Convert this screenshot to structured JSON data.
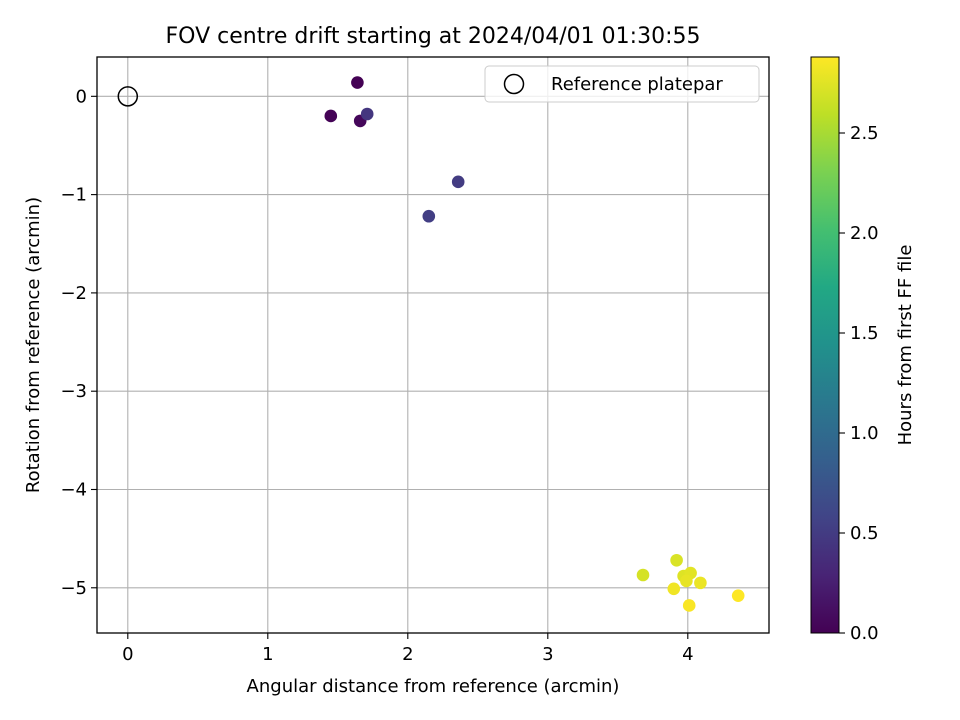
{
  "chart_data": {
    "type": "scatter",
    "title": "FOV centre drift starting at 2024/04/01 01:30:55",
    "xlabel": "Angular distance from reference (arcmin)",
    "ylabel": "Rotation from reference (arcmin)",
    "xlim": [
      -0.22,
      4.58
    ],
    "ylim": [
      -5.46,
      0.4
    ],
    "xticks": [
      0,
      1,
      2,
      3,
      4
    ],
    "yticks": [
      0,
      -1,
      -2,
      -3,
      -4,
      -5
    ],
    "xtick_labels": [
      "0",
      "1",
      "2",
      "3",
      "4"
    ],
    "ytick_labels": [
      "0",
      "−1",
      "−2",
      "−3",
      "−4",
      "−5"
    ],
    "grid": true,
    "legend": {
      "position": "top-right",
      "entries": [
        "Reference platepar"
      ]
    },
    "reference_point": {
      "x": 0,
      "y": 0,
      "name": "Reference platepar"
    },
    "points": [
      {
        "x": 1.64,
        "y": 0.14,
        "hours": 0.0
      },
      {
        "x": 1.45,
        "y": -0.2,
        "hours": 0.02
      },
      {
        "x": 1.66,
        "y": -0.25,
        "hours": 0.05
      },
      {
        "x": 1.71,
        "y": -0.18,
        "hours": 0.45
      },
      {
        "x": 2.36,
        "y": -0.87,
        "hours": 0.5
      },
      {
        "x": 2.15,
        "y": -1.22,
        "hours": 0.52
      },
      {
        "x": 3.68,
        "y": -4.87,
        "hours": 2.7
      },
      {
        "x": 3.92,
        "y": -4.72,
        "hours": 2.72
      },
      {
        "x": 3.97,
        "y": -4.88,
        "hours": 2.74
      },
      {
        "x": 4.02,
        "y": -4.85,
        "hours": 2.76
      },
      {
        "x": 3.99,
        "y": -4.93,
        "hours": 2.78
      },
      {
        "x": 4.09,
        "y": -4.95,
        "hours": 2.8
      },
      {
        "x": 3.9,
        "y": -5.01,
        "hours": 2.82
      },
      {
        "x": 4.01,
        "y": -5.18,
        "hours": 2.86
      },
      {
        "x": 4.36,
        "y": -5.08,
        "hours": 2.88
      }
    ],
    "colorbar": {
      "label": "Hours from first FF file",
      "colormap": "viridis",
      "range": [
        0,
        2.88
      ],
      "ticks": [
        0.0,
        0.5,
        1.0,
        1.5,
        2.0,
        2.5
      ],
      "tick_labels": [
        "0.0",
        "0.5",
        "1.0",
        "1.5",
        "2.0",
        "2.5"
      ]
    }
  }
}
